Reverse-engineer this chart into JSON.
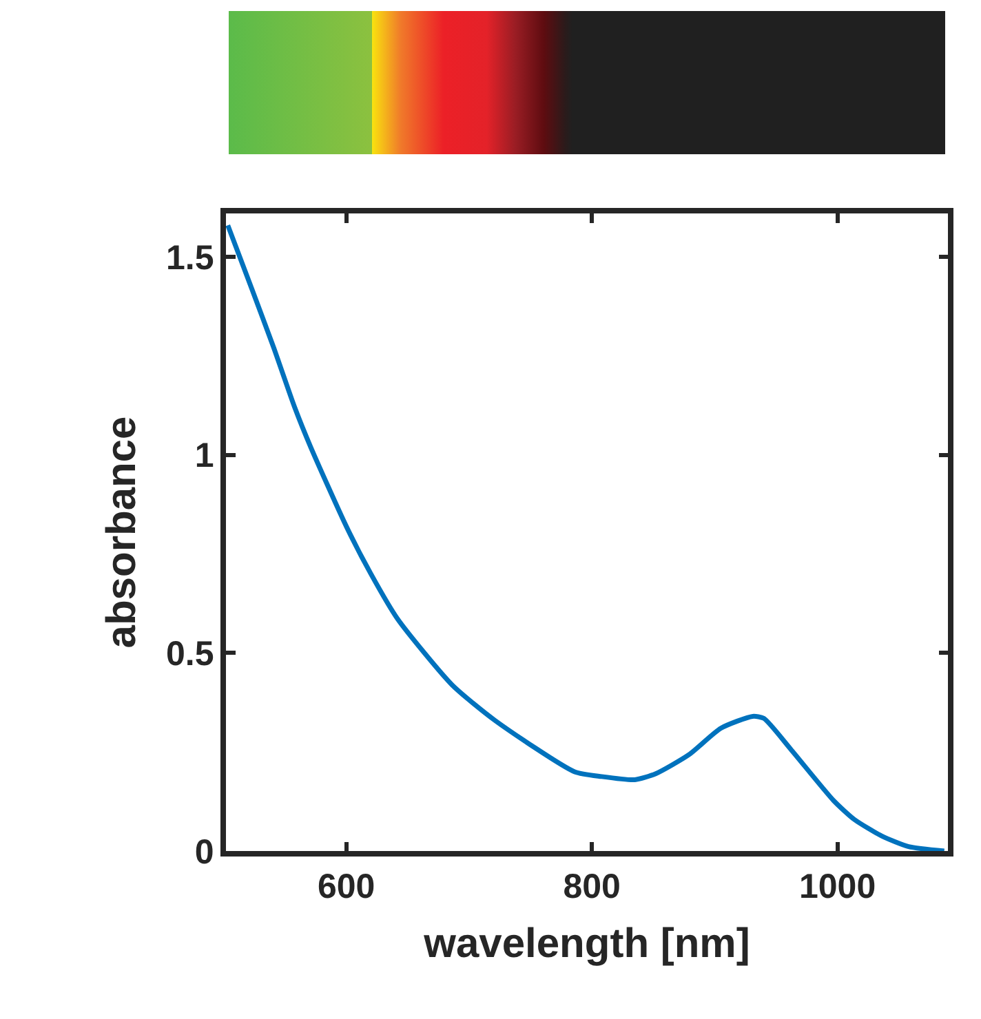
{
  "chart_data": {
    "type": "line",
    "xlabel": "wavelength [nm]",
    "ylabel": "absorbance",
    "x": [
      503.5,
      523,
      541,
      558,
      571,
      600,
      620,
      642,
      686,
      721,
      786,
      808,
      835,
      852,
      879,
      905,
      931,
      940,
      962,
      997,
      1014,
      1036,
      1058,
      1087
    ],
    "series": [
      {
        "color": "#0072bd",
        "values": [
          1.58,
          1.42,
          1.27,
          1.12,
          1.02,
          0.82,
          0.7,
          0.585,
          0.42,
          0.33,
          0.2,
          0.188,
          0.18,
          0.195,
          0.243,
          0.31,
          0.34,
          0.335,
          0.257,
          0.127,
          0.079,
          0.038,
          0.011,
          0
        ]
      }
    ],
    "xlim": [
      502,
      1090
    ],
    "xticks": [
      600,
      800,
      1000
    ],
    "ylim": [
      0,
      1.61
    ],
    "yticks": [
      0,
      0.5,
      1,
      1.5
    ],
    "grid": false,
    "legend": false,
    "marker": "none",
    "line_style": "solid"
  }
}
